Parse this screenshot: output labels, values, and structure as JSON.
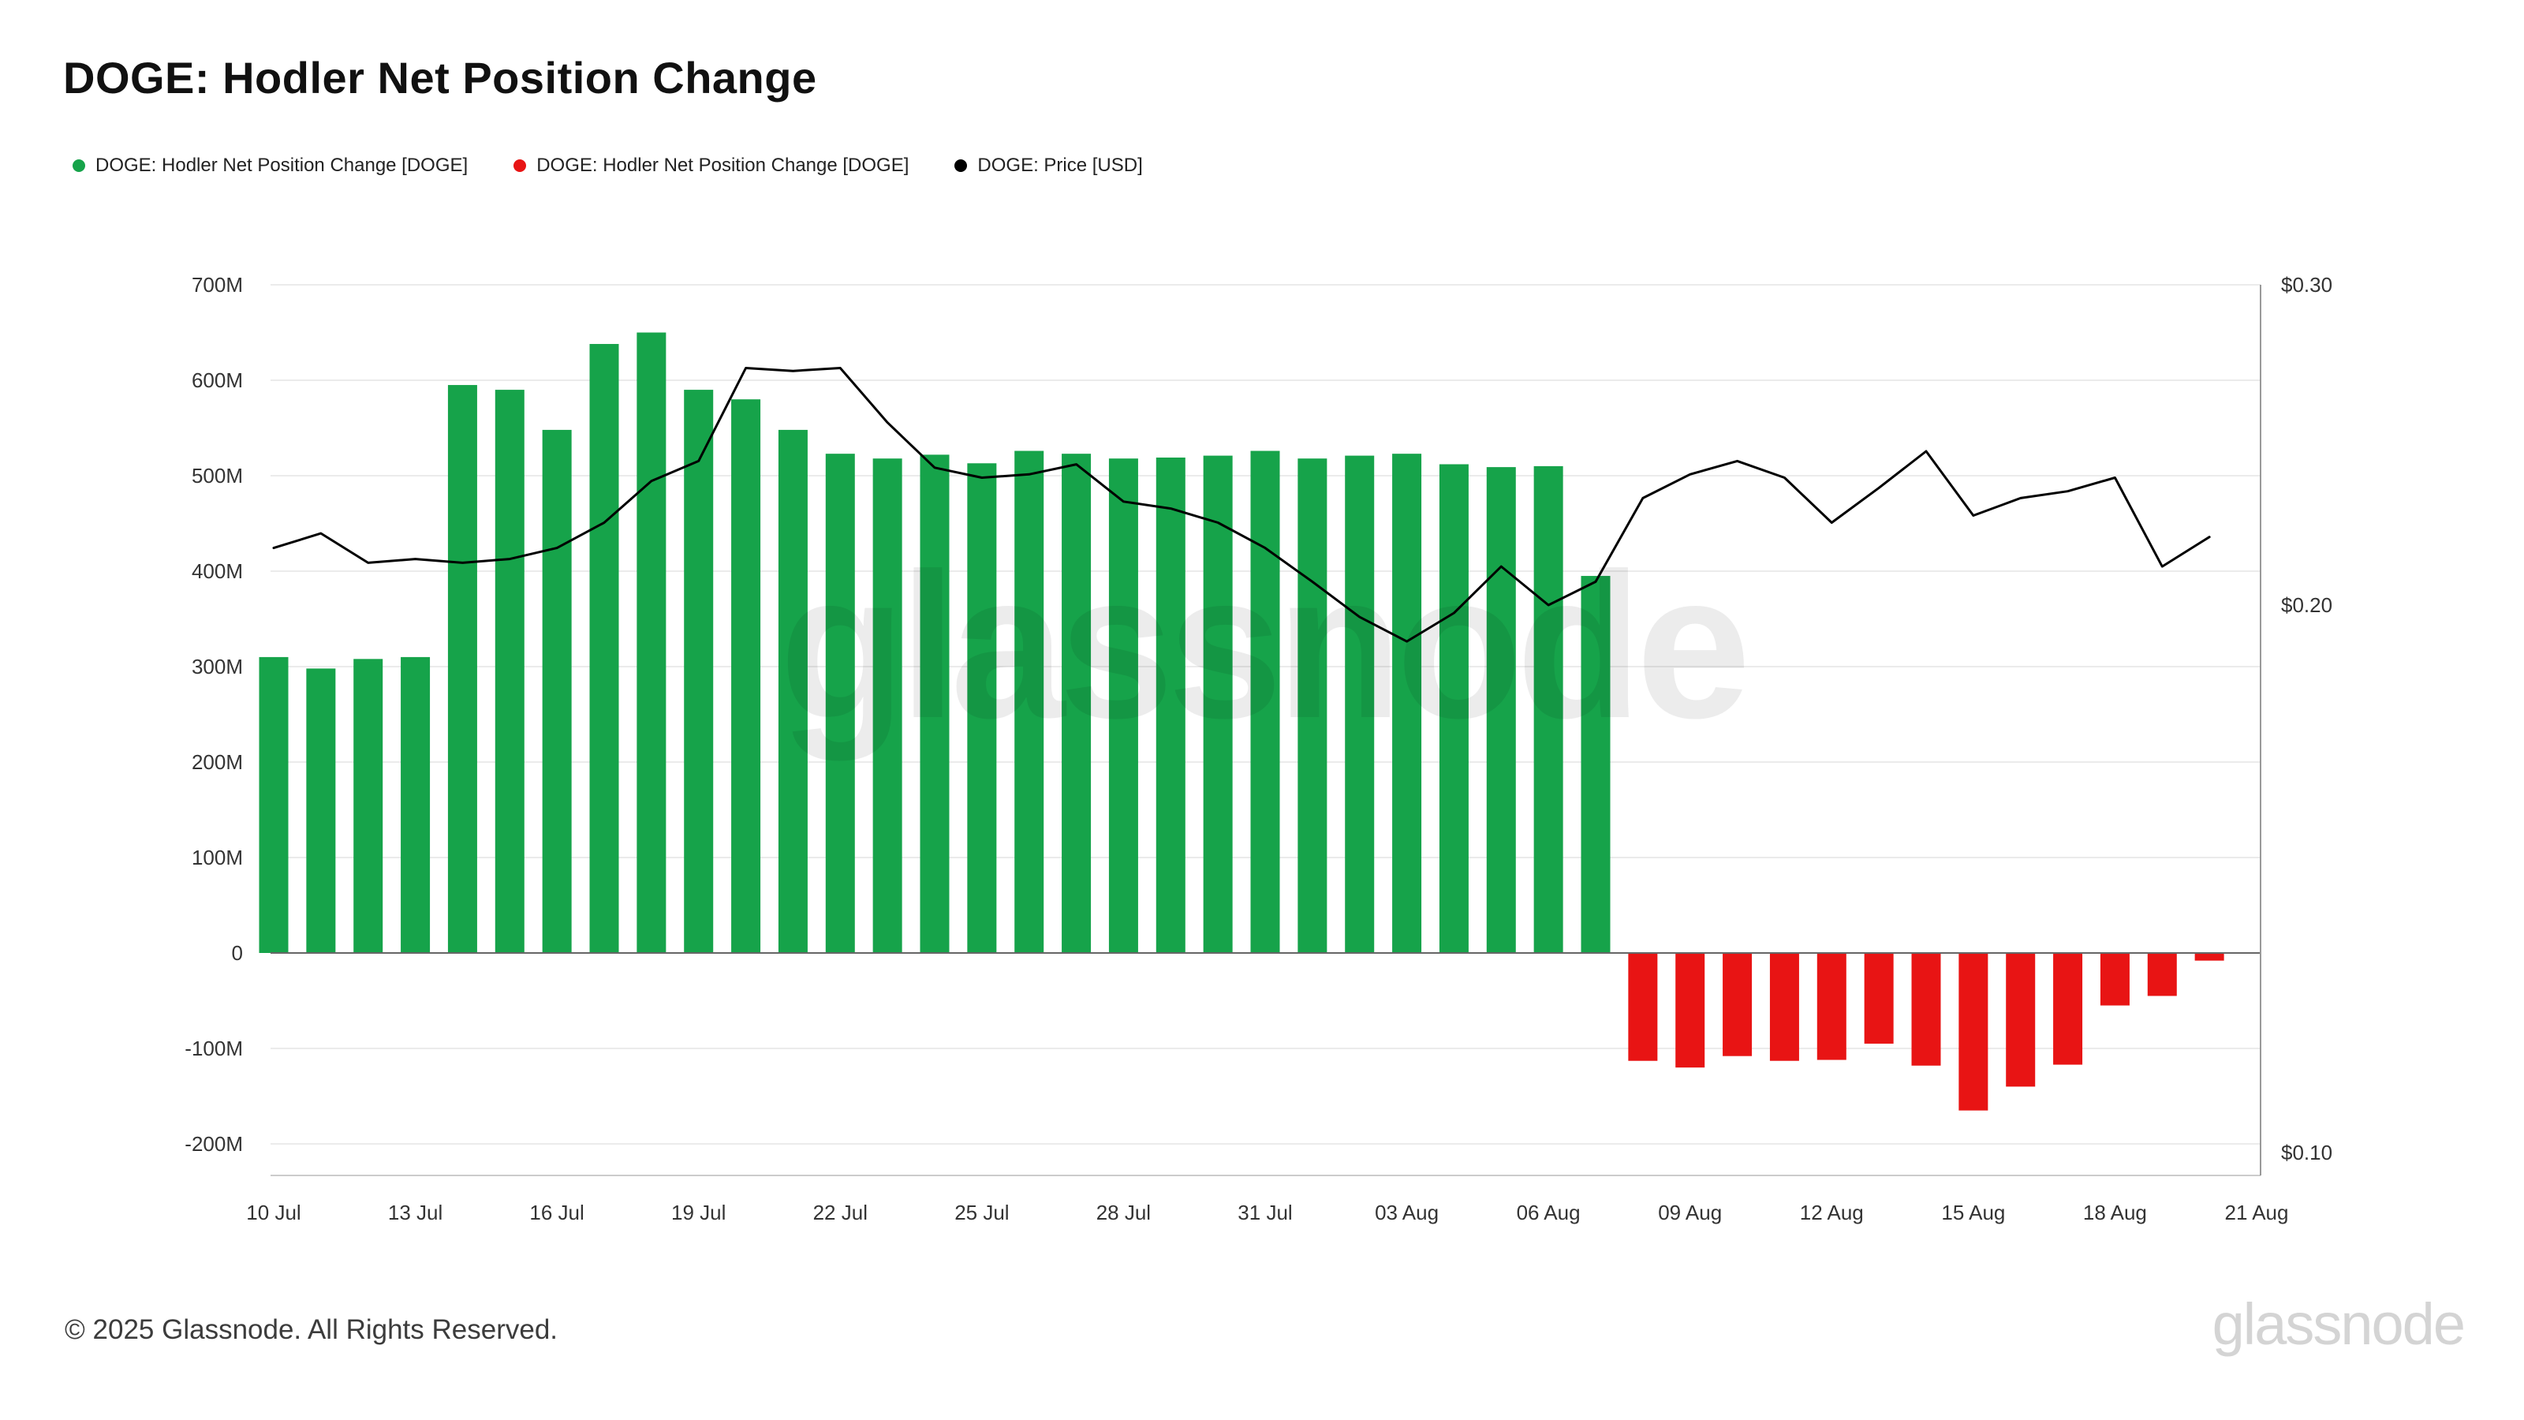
{
  "title": "DOGE: Hodler Net Position Change",
  "legend": [
    {
      "label": "DOGE: Hodler Net Position Change [DOGE]",
      "color": "#16a34a"
    },
    {
      "label": "DOGE: Hodler Net Position Change [DOGE]",
      "color": "#e81414"
    },
    {
      "label": "DOGE: Price [USD]",
      "color": "#000000"
    }
  ],
  "watermark": "glassnode",
  "footer": {
    "copyright": "© 2025 Glassnode. All Rights Reserved.",
    "brand": "glassnode"
  },
  "chart_data": {
    "type": "bar",
    "title": "DOGE: Hodler Net Position Change",
    "grid": true,
    "legend_position": "top-left",
    "categories": [
      "10 Jul",
      "11 Jul",
      "12 Jul",
      "13 Jul",
      "14 Jul",
      "15 Jul",
      "16 Jul",
      "17 Jul",
      "18 Jul",
      "19 Jul",
      "20 Jul",
      "21 Jul",
      "22 Jul",
      "23 Jul",
      "24 Jul",
      "25 Jul",
      "26 Jul",
      "27 Jul",
      "28 Jul",
      "29 Jul",
      "30 Jul",
      "31 Jul",
      "01 Aug",
      "02 Aug",
      "03 Aug",
      "04 Aug",
      "05 Aug",
      "06 Aug",
      "07 Aug",
      "08 Aug",
      "09 Aug",
      "10 Aug",
      "11 Aug",
      "12 Aug",
      "13 Aug",
      "14 Aug",
      "15 Aug",
      "16 Aug",
      "17 Aug",
      "18 Aug",
      "19 Aug",
      "20 Aug"
    ],
    "series": [
      {
        "name": "DOGE: Hodler Net Position Change [DOGE]",
        "type": "bar",
        "axis": "left",
        "unit": "DOGE (millions)",
        "positive_color": "#16a34a",
        "negative_color": "#e81414",
        "values_millions": [
          310,
          298,
          308,
          310,
          595,
          590,
          548,
          638,
          650,
          590,
          580,
          548,
          523,
          518,
          522,
          513,
          526,
          523,
          518,
          519,
          521,
          526,
          518,
          521,
          523,
          512,
          509,
          510,
          395,
          -113,
          -120,
          -108,
          -113,
          -112,
          -95,
          -118,
          -165,
          -140,
          -117,
          -55,
          -45,
          -8
        ]
      },
      {
        "name": "DOGE: Price [USD]",
        "type": "line",
        "axis": "right",
        "unit": "USD",
        "color": "#000000",
        "values_usd": [
          0.215,
          0.219,
          0.211,
          0.212,
          0.211,
          0.212,
          0.215,
          0.222,
          0.234,
          0.24,
          0.27,
          0.269,
          0.27,
          0.252,
          0.238,
          0.235,
          0.236,
          0.239,
          0.228,
          0.226,
          0.222,
          0.215,
          0.206,
          0.197,
          0.191,
          0.198,
          0.21,
          0.2,
          0.206,
          0.229,
          0.236,
          0.24,
          0.235,
          0.222,
          0.232,
          0.243,
          0.224,
          0.229,
          0.231,
          0.235,
          0.21,
          0.218
        ]
      }
    ],
    "left_axis": {
      "ticks": [
        "700M",
        "600M",
        "500M",
        "400M",
        "300M",
        "200M",
        "100M",
        "0",
        "-100M",
        "-200M"
      ],
      "min_millions": -200,
      "max_millions": 700,
      "scale": "linear"
    },
    "right_axis": {
      "ticks": [
        "$0.30",
        "$0.20",
        "$0.10"
      ],
      "tick_values": [
        0.3,
        0.2,
        0.1
      ],
      "min": 0.1,
      "max": 0.3,
      "scale": "log"
    },
    "x_ticks": [
      "10 Jul",
      "13 Jul",
      "16 Jul",
      "19 Jul",
      "22 Jul",
      "25 Jul",
      "28 Jul",
      "31 Jul",
      "03 Aug",
      "06 Aug",
      "09 Aug",
      "12 Aug",
      "15 Aug",
      "18 Aug",
      "21 Aug"
    ]
  }
}
